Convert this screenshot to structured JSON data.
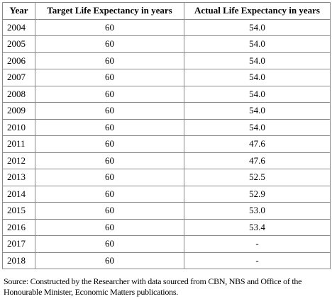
{
  "table": {
    "headers": [
      "Year",
      "Target Life Expectancy in years",
      "Actual Life Expectancy in years"
    ],
    "rows": [
      {
        "year": "2004",
        "target": "60",
        "actual": "54.0"
      },
      {
        "year": "2005",
        "target": "60",
        "actual": "54.0"
      },
      {
        "year": "2006",
        "target": "60",
        "actual": "54.0"
      },
      {
        "year": "2007",
        "target": "60",
        "actual": "54.0"
      },
      {
        "year": "2008",
        "target": "60",
        "actual": "54.0"
      },
      {
        "year": "2009",
        "target": "60",
        "actual": "54.0"
      },
      {
        "year": "2010",
        "target": "60",
        "actual": "54.0"
      },
      {
        "year": "2011",
        "target": "60",
        "actual": "47.6"
      },
      {
        "year": "2012",
        "target": "60",
        "actual": "47.6"
      },
      {
        "year": "2013",
        "target": "60",
        "actual": "52.5"
      },
      {
        "year": "2014",
        "target": "60",
        "actual": "52.9"
      },
      {
        "year": "2015",
        "target": "60",
        "actual": "53.0"
      },
      {
        "year": "2016",
        "target": "60",
        "actual": "53.4"
      },
      {
        "year": "2017",
        "target": "60",
        "actual": "-"
      },
      {
        "year": "2018",
        "target": "60",
        "actual": "-"
      }
    ]
  },
  "source_note": "Source: Constructed by the Researcher with data sourced from CBN, NBS and Office of the Honourable Minister, Economic Matters publications."
}
